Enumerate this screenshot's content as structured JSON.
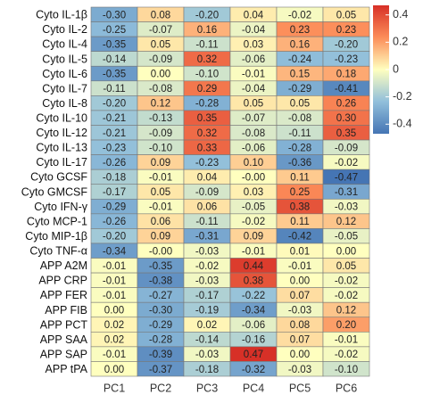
{
  "chart_data": {
    "type": "heatmap",
    "x_categories": [
      "PC1",
      "PC2",
      "PC3",
      "PC4",
      "PC5",
      "PC6"
    ],
    "y_categories": [
      "Cyto IL-1β",
      "Cyto IL-2",
      "Cyto IL-4",
      "Cyto IL-5",
      "Cyto IL-6",
      "Cyto IL-7",
      "Cyto IL-8",
      "Cyto IL-10",
      "Cyto IL-12",
      "Cyto IL-13",
      "Cyto IL-17",
      "Cyto GCSF",
      "Cyto GMCSF",
      "Cyto IFN-γ",
      "Cyto MCP-1",
      "Cyto MIP-1β",
      "Cyto TNF-α",
      "APP A2M",
      "APP CRP",
      "APP FER",
      "APP FIB",
      "APP PCT",
      "APP SAA",
      "APP SAP",
      "APP tPA"
    ],
    "values": [
      [
        -0.3,
        0.08,
        -0.2,
        0.04,
        -0.02,
        0.05
      ],
      [
        -0.25,
        -0.07,
        0.16,
        -0.04,
        0.23,
        0.23
      ],
      [
        -0.35,
        0.05,
        -0.11,
        0.03,
        0.16,
        -0.2
      ],
      [
        -0.14,
        -0.09,
        0.32,
        -0.06,
        -0.24,
        -0.23
      ],
      [
        -0.35,
        0.0,
        -0.1,
        -0.01,
        0.15,
        0.18
      ],
      [
        -0.11,
        -0.08,
        0.29,
        -0.04,
        -0.29,
        -0.41
      ],
      [
        -0.2,
        0.12,
        -0.28,
        0.05,
        0.05,
        0.26
      ],
      [
        -0.21,
        -0.13,
        0.35,
        -0.07,
        -0.08,
        0.3
      ],
      [
        -0.21,
        -0.09,
        0.32,
        -0.08,
        -0.11,
        0.35
      ],
      [
        -0.23,
        -0.1,
        0.33,
        -0.06,
        -0.28,
        -0.09
      ],
      [
        -0.26,
        0.09,
        -0.23,
        0.1,
        -0.36,
        -0.02
      ],
      [
        -0.18,
        -0.01,
        0.04,
        0.0,
        0.11,
        -0.47
      ],
      [
        -0.17,
        0.05,
        -0.09,
        0.03,
        0.25,
        -0.31
      ],
      [
        -0.29,
        -0.01,
        0.06,
        -0.05,
        0.38,
        -0.03
      ],
      [
        -0.26,
        0.06,
        -0.11,
        -0.02,
        0.11,
        0.12
      ],
      [
        -0.2,
        0.09,
        -0.31,
        0.09,
        -0.42,
        -0.05
      ],
      [
        -0.34,
        0.0,
        -0.03,
        -0.01,
        0.01,
        0.0
      ],
      [
        -0.01,
        -0.35,
        -0.02,
        0.44,
        -0.01,
        0.05
      ],
      [
        -0.01,
        -0.38,
        -0.03,
        0.38,
        0.0,
        -0.02
      ],
      [
        -0.01,
        -0.27,
        -0.17,
        -0.22,
        0.07,
        -0.02
      ],
      [
        0.0,
        -0.3,
        -0.19,
        -0.34,
        -0.03,
        0.12
      ],
      [
        0.02,
        -0.29,
        0.02,
        -0.06,
        0.08,
        0.2
      ],
      [
        0.02,
        -0.28,
        -0.14,
        -0.16,
        0.07,
        -0.01
      ],
      [
        -0.01,
        -0.39,
        -0.03,
        0.47,
        0.0,
        -0.02
      ],
      [
        0.0,
        -0.37,
        -0.18,
        -0.32,
        -0.03,
        -0.1
      ]
    ],
    "value_labels": [
      [
        "-0.30",
        "0.08",
        "-0.20",
        "0.04",
        "-0.02",
        "0.05"
      ],
      [
        "-0.25",
        "-0.07",
        "0.16",
        "-0.04",
        "0.23",
        "0.23"
      ],
      [
        "-0.35",
        "0.05",
        "-0.11",
        "0.03",
        "0.16",
        "-0.20"
      ],
      [
        "-0.14",
        "-0.09",
        "0.32",
        "-0.06",
        "-0.24",
        "-0.23"
      ],
      [
        "-0.35",
        "0.00",
        "-0.10",
        "-0.01",
        "0.15",
        "0.18"
      ],
      [
        "-0.11",
        "-0.08",
        "0.29",
        "-0.04",
        "-0.29",
        "-0.41"
      ],
      [
        "-0.20",
        "0.12",
        "-0.28",
        "0.05",
        "0.05",
        "0.26"
      ],
      [
        "-0.21",
        "-0.13",
        "0.35",
        "-0.07",
        "-0.08",
        "0.30"
      ],
      [
        "-0.21",
        "-0.09",
        "0.32",
        "-0.08",
        "-0.11",
        "0.35"
      ],
      [
        "-0.23",
        "-0.10",
        "0.33",
        "-0.06",
        "-0.28",
        "-0.09"
      ],
      [
        "-0.26",
        "0.09",
        "-0.23",
        "0.10",
        "-0.36",
        "-0.02"
      ],
      [
        "-0.18",
        "-0.01",
        "0.04",
        "-0.00",
        "0.11",
        "-0.47"
      ],
      [
        "-0.17",
        "0.05",
        "-0.09",
        "0.03",
        "0.25",
        "-0.31"
      ],
      [
        "-0.29",
        "-0.01",
        "0.06",
        "-0.05",
        "0.38",
        "-0.03"
      ],
      [
        "-0.26",
        "0.06",
        "-0.11",
        "-0.02",
        "0.11",
        "0.12"
      ],
      [
        "-0.20",
        "0.09",
        "-0.31",
        "0.09",
        "-0.42",
        "-0.05"
      ],
      [
        "-0.34",
        "-0.00",
        "-0.03",
        "-0.01",
        "0.01",
        "0.00"
      ],
      [
        "-0.01",
        "-0.35",
        "-0.02",
        "0.44",
        "-0.01",
        "0.05"
      ],
      [
        "-0.01",
        "-0.38",
        "-0.03",
        "0.38",
        "0.00",
        "-0.02"
      ],
      [
        "-0.01",
        "-0.27",
        "-0.17",
        "-0.22",
        "0.07",
        "-0.02"
      ],
      [
        "0.00",
        "-0.30",
        "-0.19",
        "-0.34",
        "-0.03",
        "0.12"
      ],
      [
        "0.02",
        "-0.29",
        "0.02",
        "-0.06",
        "0.08",
        "0.20"
      ],
      [
        "0.02",
        "-0.28",
        "-0.14",
        "-0.16",
        "0.07",
        "-0.01"
      ],
      [
        "-0.01",
        "-0.39",
        "-0.03",
        "0.47",
        "0.00",
        "-0.02"
      ],
      [
        "0.00",
        "-0.37",
        "-0.18",
        "-0.32",
        "-0.03",
        "-0.10"
      ]
    ],
    "zlim": [
      -0.47,
      0.47
    ],
    "zticks": [
      0.4,
      0.2,
      0,
      -0.2,
      -0.4
    ],
    "colors": [
      "#4575b4",
      "#91bfdb",
      "#ffffbf",
      "#fc8d59",
      "#d73027"
    ]
  }
}
